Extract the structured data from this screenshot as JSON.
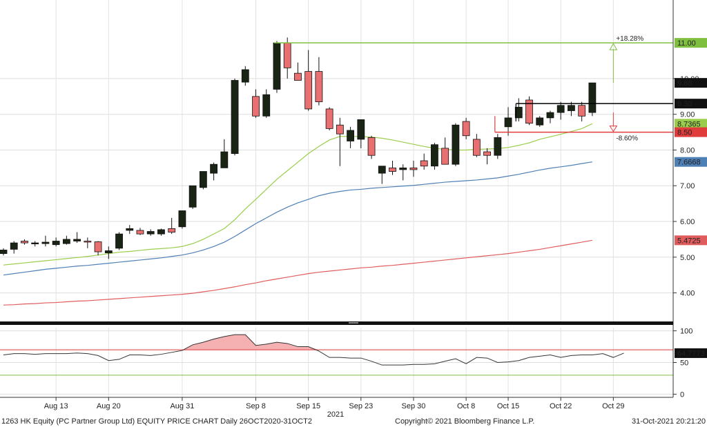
{
  "chart_data": [
    {
      "type": "candlestick",
      "ylim": [
        3.2,
        12.2
      ],
      "y_ticks": [
        "4.00",
        "5.00",
        "6.00",
        "7.00",
        "8.00",
        "9.00",
        "10.00"
      ],
      "x_tick_labels": [
        "Aug 13",
        "Aug 20",
        "Aug 31",
        "Sep 8",
        "Sep 15",
        "Sep 23",
        "Sep 30",
        "Oct 8",
        "Oct 15",
        "Oct 22",
        "Oct 29"
      ],
      "x_tick_index": [
        5,
        10,
        17,
        24,
        29,
        34,
        39,
        44,
        48,
        53,
        58
      ],
      "year_label": "2021",
      "candles": [
        {
          "o": 5.1,
          "h": 5.25,
          "l": 5.05,
          "c": 5.2
        },
        {
          "o": 5.22,
          "h": 5.45,
          "l": 5.1,
          "c": 5.4
        },
        {
          "o": 5.45,
          "h": 5.5,
          "l": 5.35,
          "c": 5.4
        },
        {
          "o": 5.4,
          "h": 5.45,
          "l": 5.3,
          "c": 5.4
        },
        {
          "o": 5.38,
          "h": 5.6,
          "l": 5.3,
          "c": 5.42
        },
        {
          "o": 5.35,
          "h": 5.55,
          "l": 5.3,
          "c": 5.45
        },
        {
          "o": 5.38,
          "h": 5.6,
          "l": 5.35,
          "c": 5.5
        },
        {
          "o": 5.45,
          "h": 5.7,
          "l": 5.4,
          "c": 5.5
        },
        {
          "o": 5.45,
          "h": 5.55,
          "l": 5.25,
          "c": 5.43
        },
        {
          "o": 5.43,
          "h": 5.45,
          "l": 5.05,
          "c": 5.15
        },
        {
          "o": 5.12,
          "h": 5.3,
          "l": 4.95,
          "c": 5.18
        },
        {
          "o": 5.25,
          "h": 5.7,
          "l": 5.2,
          "c": 5.65
        },
        {
          "o": 5.75,
          "h": 5.9,
          "l": 5.65,
          "c": 5.8
        },
        {
          "o": 5.75,
          "h": 5.82,
          "l": 5.62,
          "c": 5.65
        },
        {
          "o": 5.65,
          "h": 5.78,
          "l": 5.6,
          "c": 5.72
        },
        {
          "o": 5.65,
          "h": 5.8,
          "l": 5.6,
          "c": 5.77
        },
        {
          "o": 5.8,
          "h": 6.1,
          "l": 5.65,
          "c": 5.7
        },
        {
          "o": 5.85,
          "h": 6.3,
          "l": 5.8,
          "c": 6.3
        },
        {
          "o": 6.4,
          "h": 7.0,
          "l": 6.35,
          "c": 7.0
        },
        {
          "o": 6.95,
          "h": 7.4,
          "l": 6.9,
          "c": 7.4
        },
        {
          "o": 7.35,
          "h": 7.65,
          "l": 7.15,
          "c": 7.6
        },
        {
          "o": 7.5,
          "h": 8.3,
          "l": 7.5,
          "c": 7.95
        },
        {
          "o": 7.9,
          "h": 10.0,
          "l": 7.85,
          "c": 9.95
        },
        {
          "o": 9.9,
          "h": 10.35,
          "l": 9.8,
          "c": 10.25
        },
        {
          "o": 9.5,
          "h": 9.7,
          "l": 8.9,
          "c": 8.95
        },
        {
          "o": 8.95,
          "h": 9.7,
          "l": 8.9,
          "c": 9.55
        },
        {
          "o": 9.7,
          "h": 11.05,
          "l": 9.6,
          "c": 11.0
        },
        {
          "o": 11.0,
          "h": 11.15,
          "l": 10.0,
          "c": 10.3
        },
        {
          "o": 10.15,
          "h": 10.45,
          "l": 9.95,
          "c": 9.95
        },
        {
          "o": 10.2,
          "h": 10.8,
          "l": 9.1,
          "c": 9.15
        },
        {
          "o": 10.2,
          "h": 10.6,
          "l": 9.25,
          "c": 9.35
        },
        {
          "o": 9.15,
          "h": 9.2,
          "l": 8.55,
          "c": 8.6
        },
        {
          "o": 8.7,
          "h": 8.9,
          "l": 7.55,
          "c": 8.45
        },
        {
          "o": 8.25,
          "h": 8.65,
          "l": 8.05,
          "c": 8.55
        },
        {
          "o": 8.3,
          "h": 8.85,
          "l": 8.05,
          "c": 8.85
        },
        {
          "o": 8.35,
          "h": 8.4,
          "l": 7.75,
          "c": 7.85
        },
        {
          "o": 7.35,
          "h": 7.55,
          "l": 7.05,
          "c": 7.55
        },
        {
          "o": 7.5,
          "h": 7.7,
          "l": 7.3,
          "c": 7.4
        },
        {
          "o": 7.45,
          "h": 7.6,
          "l": 7.15,
          "c": 7.5
        },
        {
          "o": 7.5,
          "h": 7.7,
          "l": 7.25,
          "c": 7.45
        },
        {
          "o": 7.7,
          "h": 7.9,
          "l": 7.45,
          "c": 7.55
        },
        {
          "o": 7.55,
          "h": 8.2,
          "l": 7.45,
          "c": 8.15
        },
        {
          "o": 8.05,
          "h": 8.35,
          "l": 7.6,
          "c": 7.6
        },
        {
          "o": 7.6,
          "h": 8.75,
          "l": 7.55,
          "c": 8.7
        },
        {
          "o": 8.8,
          "h": 8.9,
          "l": 8.3,
          "c": 8.4
        },
        {
          "o": 8.3,
          "h": 8.45,
          "l": 7.8,
          "c": 7.85
        },
        {
          "o": 7.95,
          "h": 8.05,
          "l": 7.6,
          "c": 7.85
        },
        {
          "o": 7.85,
          "h": 8.45,
          "l": 7.75,
          "c": 8.35
        },
        {
          "o": 8.65,
          "h": 9.2,
          "l": 8.4,
          "c": 8.9
        },
        {
          "o": 8.9,
          "h": 9.45,
          "l": 8.8,
          "c": 9.2
        },
        {
          "o": 9.4,
          "h": 9.5,
          "l": 8.7,
          "c": 8.75
        },
        {
          "o": 8.7,
          "h": 8.95,
          "l": 8.65,
          "c": 8.9
        },
        {
          "o": 8.9,
          "h": 9.1,
          "l": 8.75,
          "c": 9.05
        },
        {
          "o": 9.05,
          "h": 9.35,
          "l": 8.85,
          "c": 9.25
        },
        {
          "o": 9.1,
          "h": 9.35,
          "l": 8.95,
          "c": 9.25
        },
        {
          "o": 9.25,
          "h": 9.35,
          "l": 8.8,
          "c": 8.95
        },
        {
          "o": 9.05,
          "h": 9.8,
          "l": 8.95,
          "c": 9.88
        }
      ],
      "moving_averages": [
        {
          "color": "#9acd4b",
          "points": [
            4.78,
            4.81,
            4.84,
            4.87,
            4.9,
            4.93,
            4.96,
            4.99,
            5.02,
            5.06,
            5.1,
            5.14,
            5.16,
            5.19,
            5.22,
            5.24,
            5.26,
            5.3,
            5.38,
            5.5,
            5.65,
            5.8,
            6.05,
            6.35,
            6.62,
            6.9,
            7.18,
            7.42,
            7.66,
            7.9,
            8.1,
            8.28,
            8.38,
            8.38,
            8.38,
            8.36,
            8.33,
            8.28,
            8.22,
            8.16,
            8.1,
            8.05,
            8.02,
            8.0,
            8.0,
            8.02,
            8.03,
            8.04,
            8.07,
            8.13,
            8.2,
            8.3,
            8.37,
            8.44,
            8.52,
            8.6,
            8.7365
          ]
        },
        {
          "color": "#4e7fb5",
          "points": [
            4.5,
            4.54,
            4.58,
            4.62,
            4.66,
            4.69,
            4.72,
            4.75,
            4.77,
            4.8,
            4.83,
            4.86,
            4.89,
            4.92,
            4.95,
            4.98,
            5.02,
            5.06,
            5.12,
            5.2,
            5.3,
            5.42,
            5.58,
            5.76,
            5.94,
            6.1,
            6.26,
            6.4,
            6.52,
            6.62,
            6.72,
            6.79,
            6.84,
            6.88,
            6.9,
            6.93,
            6.95,
            6.97,
            6.99,
            7.01,
            7.04,
            7.07,
            7.1,
            7.12,
            7.14,
            7.16,
            7.19,
            7.22,
            7.27,
            7.32,
            7.38,
            7.44,
            7.49,
            7.53,
            7.57,
            7.62,
            7.6668
          ]
        },
        {
          "color": "#e05c5c",
          "points": [
            3.66,
            3.67,
            3.69,
            3.7,
            3.72,
            3.73,
            3.75,
            3.77,
            3.78,
            3.8,
            3.82,
            3.84,
            3.86,
            3.88,
            3.9,
            3.92,
            3.94,
            3.96,
            3.99,
            4.03,
            4.07,
            4.12,
            4.17,
            4.23,
            4.28,
            4.34,
            4.39,
            4.44,
            4.49,
            4.54,
            4.58,
            4.61,
            4.64,
            4.67,
            4.7,
            4.72,
            4.75,
            4.77,
            4.8,
            4.83,
            4.86,
            4.89,
            4.92,
            4.95,
            4.98,
            5.01,
            5.04,
            5.07,
            5.1,
            5.14,
            5.18,
            5.22,
            5.27,
            5.32,
            5.37,
            5.42,
            5.4725
          ]
        }
      ],
      "reference_lines": [
        {
          "value": 11.0,
          "color": "#7fbf3f",
          "label": "11.00",
          "annotation": "+18.28%",
          "start_index": 26
        },
        {
          "value": 9.3,
          "color": "#000000",
          "label": "9.30",
          "start_index": 49
        },
        {
          "value": 8.5,
          "color": "#e03c3c",
          "label": "8.50",
          "annotation": "-8.60%",
          "start_index": 47
        }
      ],
      "last_price": {
        "value": 9.88,
        "label": "9.88"
      },
      "ma_labels": [
        {
          "value": 8.7365,
          "label": "8.7365",
          "color": "#9acd4b"
        },
        {
          "value": 7.6668,
          "label": "7.6668",
          "color": "#4e7fb5"
        },
        {
          "value": 5.4725,
          "label": "5.4725",
          "color": "#e05c5c"
        }
      ]
    },
    {
      "type": "line",
      "ylim": [
        -5,
        105
      ],
      "y_ticks": [
        "0",
        "50",
        "100"
      ],
      "upper_band": 70,
      "lower_band": 30,
      "last": {
        "value": 64.7773,
        "label": "64.7773"
      },
      "values": [
        62,
        64,
        64,
        63,
        64,
        64,
        64,
        65,
        64,
        61,
        53,
        55,
        62,
        62,
        61,
        63,
        66,
        69,
        78,
        82,
        87,
        91,
        94,
        94,
        77,
        79,
        82,
        80,
        75,
        75,
        68,
        58,
        58,
        57,
        57,
        52,
        46,
        46,
        46,
        47,
        47,
        48,
        52,
        56,
        48,
        58,
        57,
        50,
        51,
        53,
        58,
        60,
        62,
        58,
        61,
        62,
        62,
        64,
        58,
        64.78
      ]
    }
  ],
  "footer": {
    "left": "1263 HK Equity (PC Partner Group Ltd) EQUITY PRICE CHART  Daily 26OCT2020-31OCT2",
    "center": "Copyright© 2021 Bloomberg Finance L.P.",
    "right": "31-Oct-2021 20:21:20"
  }
}
